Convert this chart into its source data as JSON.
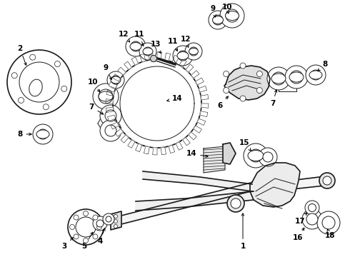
{
  "background_color": "#ffffff",
  "line_color": "#1a1a1a",
  "fig_width": 4.9,
  "fig_height": 3.6,
  "dpi": 100
}
